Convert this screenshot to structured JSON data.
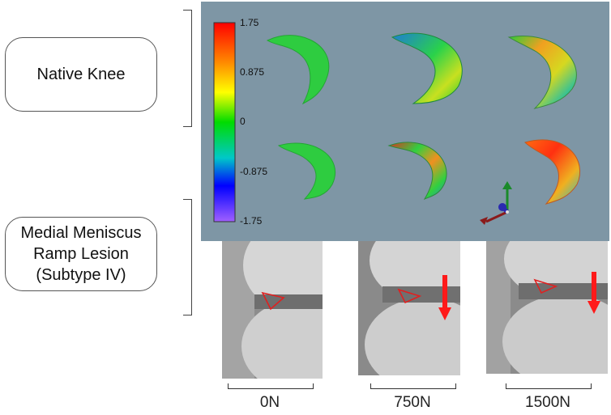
{
  "groups": {
    "native": {
      "label": "Native Knee"
    },
    "ramp": {
      "line1": "Medial Meniscus",
      "line2": "Ramp Lesion",
      "line3": "(Subtype IV)"
    }
  },
  "colorbar": {
    "max": "1.75",
    "upper": "0.875",
    "zero": "0",
    "lower": "-0.875",
    "min": "-1.75",
    "colors": [
      "#ff0000",
      "#ff8a00",
      "#ffff00",
      "#00dc00",
      "#0000ff",
      "#a060ff"
    ]
  },
  "loads": [
    "0N",
    "750N",
    "1500N"
  ],
  "colors": {
    "panel_bg": "#7e96a5",
    "arrow": "#ff1a1a",
    "roi_outline": "#e02020"
  }
}
